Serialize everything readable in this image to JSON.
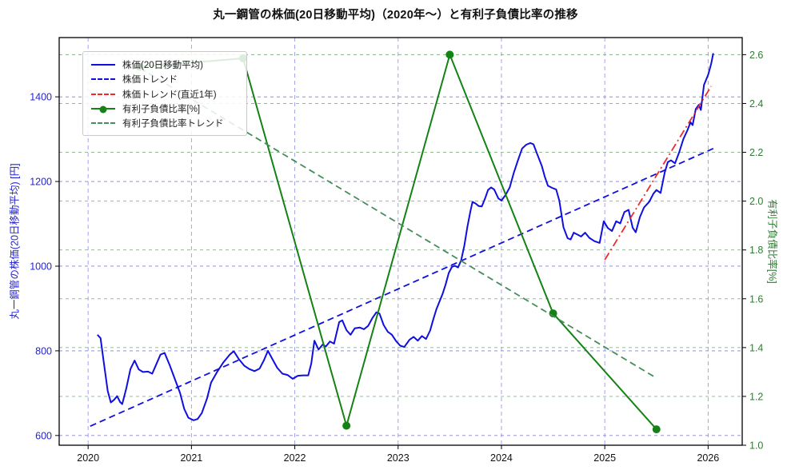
{
  "title": "丸一鋼管の株価(20日移動平均)（2020年～）と有利子負債比率の推移",
  "axes": {
    "x": {
      "ticks": [
        2020,
        2021,
        2022,
        2023,
        2024,
        2025,
        2026
      ],
      "lim": [
        2019.72,
        2026.33
      ]
    },
    "left": {
      "label": "丸一鋼管の株価(20日移動平均) [円]",
      "text_color": "#2424cc",
      "ticks": [
        600,
        800,
        1000,
        1200,
        1400
      ],
      "lim": [
        577,
        1540
      ],
      "format": "int"
    },
    "right": {
      "label": "有利子負債比率[%]",
      "text_color": "#2e7d32",
      "ticks": [
        1.0,
        1.2,
        1.4,
        1.6,
        1.8,
        2.0,
        2.2,
        2.4,
        2.6
      ],
      "lim": [
        1.0,
        2.67
      ],
      "format": "1f"
    }
  },
  "grid": {
    "vertical_color": "#9a9ae8",
    "left_color": "#8282d8",
    "right_color": "#86b386"
  },
  "legend": {
    "items": [
      {
        "label": "株価(20日移動平均)",
        "color": "#0f0fe0",
        "style": "solid",
        "marker": false
      },
      {
        "label": "株価トレンド",
        "color": "#0f0fe0",
        "style": "dashed",
        "marker": false
      },
      {
        "label": "株価トレンド(直近1年)",
        "color": "#ee2b2b",
        "style": "dashdot",
        "marker": false
      },
      {
        "label": "有利子負債比率[%]",
        "color": "#148214",
        "style": "solid",
        "marker": true
      },
      {
        "label": "有利子負債比率トレンド",
        "color": "#478c5c",
        "style": "dashed",
        "marker": false
      }
    ]
  },
  "chart_data": {
    "type": "line",
    "xlabel": "",
    "ylabel_left": "丸一鋼管の株価(20日移動平均) [円]",
    "ylabel_right": "有利子負債比率[%]",
    "series": [
      {
        "name": "株価(20日移動平均)",
        "axis": "left",
        "color": "#0f0fe0",
        "style": "solid",
        "width": 2,
        "points": [
          [
            2020.09,
            838
          ],
          [
            2020.12,
            830
          ],
          [
            2020.15,
            775
          ],
          [
            2020.19,
            705
          ],
          [
            2020.22,
            678
          ],
          [
            2020.25,
            684
          ],
          [
            2020.28,
            693
          ],
          [
            2020.31,
            679
          ],
          [
            2020.33,
            674
          ],
          [
            2020.37,
            712
          ],
          [
            2020.41,
            757
          ],
          [
            2020.45,
            777
          ],
          [
            2020.49,
            756
          ],
          [
            2020.53,
            750
          ],
          [
            2020.58,
            751
          ],
          [
            2020.62,
            746
          ],
          [
            2020.66,
            768
          ],
          [
            2020.7,
            791
          ],
          [
            2020.74,
            795
          ],
          [
            2020.79,
            766
          ],
          [
            2020.84,
            733
          ],
          [
            2020.89,
            700
          ],
          [
            2020.93,
            663
          ],
          [
            2020.97,
            642
          ],
          [
            2021.02,
            636
          ],
          [
            2021.06,
            639
          ],
          [
            2021.1,
            653
          ],
          [
            2021.15,
            687
          ],
          [
            2021.19,
            725
          ],
          [
            2021.25,
            751
          ],
          [
            2021.31,
            773
          ],
          [
            2021.37,
            791
          ],
          [
            2021.41,
            799
          ],
          [
            2021.46,
            780
          ],
          [
            2021.51,
            765
          ],
          [
            2021.56,
            757
          ],
          [
            2021.61,
            752
          ],
          [
            2021.66,
            758
          ],
          [
            2021.7,
            777
          ],
          [
            2021.74,
            800
          ],
          [
            2021.78,
            782
          ],
          [
            2021.83,
            760
          ],
          [
            2021.88,
            746
          ],
          [
            2021.93,
            743
          ],
          [
            2021.98,
            734
          ],
          [
            2022.03,
            741
          ],
          [
            2022.08,
            742
          ],
          [
            2022.13,
            742
          ],
          [
            2022.16,
            770
          ],
          [
            2022.19,
            824
          ],
          [
            2022.23,
            803
          ],
          [
            2022.27,
            815
          ],
          [
            2022.3,
            810
          ],
          [
            2022.34,
            822
          ],
          [
            2022.38,
            817
          ],
          [
            2022.43,
            868
          ],
          [
            2022.46,
            872
          ],
          [
            2022.5,
            849
          ],
          [
            2022.54,
            838
          ],
          [
            2022.58,
            853
          ],
          [
            2022.63,
            855
          ],
          [
            2022.67,
            851
          ],
          [
            2022.71,
            859
          ],
          [
            2022.75,
            877
          ],
          [
            2022.79,
            891
          ],
          [
            2022.82,
            888
          ],
          [
            2022.86,
            861
          ],
          [
            2022.9,
            845
          ],
          [
            2022.94,
            838
          ],
          [
            2022.98,
            823
          ],
          [
            2023.02,
            812
          ],
          [
            2023.06,
            809
          ],
          [
            2023.11,
            826
          ],
          [
            2023.15,
            833
          ],
          [
            2023.19,
            824
          ],
          [
            2023.23,
            835
          ],
          [
            2023.27,
            828
          ],
          [
            2023.31,
            848
          ],
          [
            2023.34,
            874
          ],
          [
            2023.37,
            898
          ],
          [
            2023.4,
            916
          ],
          [
            2023.43,
            934
          ],
          [
            2023.46,
            957
          ],
          [
            2023.49,
            984
          ],
          [
            2023.52,
            998
          ],
          [
            2023.55,
            1001
          ],
          [
            2023.58,
            997
          ],
          [
            2023.61,
            1014
          ],
          [
            2023.64,
            1048
          ],
          [
            2023.67,
            1092
          ],
          [
            2023.7,
            1130
          ],
          [
            2023.72,
            1152
          ],
          [
            2023.75,
            1148
          ],
          [
            2023.78,
            1142
          ],
          [
            2023.81,
            1141
          ],
          [
            2023.84,
            1159
          ],
          [
            2023.87,
            1180
          ],
          [
            2023.9,
            1186
          ],
          [
            2023.93,
            1181
          ],
          [
            2023.97,
            1160
          ],
          [
            2024.0,
            1155
          ],
          [
            2024.04,
            1168
          ],
          [
            2024.08,
            1186
          ],
          [
            2024.12,
            1221
          ],
          [
            2024.16,
            1250
          ],
          [
            2024.2,
            1278
          ],
          [
            2024.24,
            1287
          ],
          [
            2024.28,
            1291
          ],
          [
            2024.31,
            1288
          ],
          [
            2024.35,
            1262
          ],
          [
            2024.39,
            1237
          ],
          [
            2024.42,
            1211
          ],
          [
            2024.45,
            1190
          ],
          [
            2024.49,
            1185
          ],
          [
            2024.53,
            1181
          ],
          [
            2024.56,
            1155
          ],
          [
            2024.6,
            1092
          ],
          [
            2024.64,
            1066
          ],
          [
            2024.67,
            1063
          ],
          [
            2024.7,
            1079
          ],
          [
            2024.74,
            1074
          ],
          [
            2024.77,
            1070
          ],
          [
            2024.81,
            1079
          ],
          [
            2024.85,
            1067
          ],
          [
            2024.9,
            1059
          ],
          [
            2024.95,
            1055
          ],
          [
            2024.99,
            1106
          ],
          [
            2025.03,
            1090
          ],
          [
            2025.07,
            1083
          ],
          [
            2025.11,
            1106
          ],
          [
            2025.15,
            1101
          ],
          [
            2025.19,
            1128
          ],
          [
            2025.23,
            1133
          ],
          [
            2025.27,
            1091
          ],
          [
            2025.3,
            1080
          ],
          [
            2025.34,
            1116
          ],
          [
            2025.38,
            1139
          ],
          [
            2025.43,
            1152
          ],
          [
            2025.47,
            1171
          ],
          [
            2025.5,
            1180
          ],
          [
            2025.54,
            1173
          ],
          [
            2025.58,
            1221
          ],
          [
            2025.61,
            1246
          ],
          [
            2025.64,
            1250
          ],
          [
            2025.68,
            1243
          ],
          [
            2025.72,
            1269
          ],
          [
            2025.76,
            1300
          ],
          [
            2025.8,
            1321
          ],
          [
            2025.83,
            1340
          ],
          [
            2025.85,
            1333
          ],
          [
            2025.88,
            1371
          ],
          [
            2025.91,
            1381
          ],
          [
            2025.93,
            1369
          ],
          [
            2025.96,
            1428
          ],
          [
            2026.0,
            1452
          ],
          [
            2026.03,
            1478
          ],
          [
            2026.05,
            1503
          ]
        ]
      },
      {
        "name": "株価トレンド",
        "axis": "left",
        "color": "#0f0fe0",
        "style": "dashed",
        "width": 1.8,
        "points": [
          [
            2020.02,
            622
          ],
          [
            2026.05,
            1278
          ]
        ]
      },
      {
        "name": "株価トレンド(直近1年)",
        "axis": "left",
        "color": "#ee2b2b",
        "style": "dashdot",
        "width": 1.8,
        "points": [
          [
            2025.0,
            1015
          ],
          [
            2026.03,
            1425
          ]
        ]
      },
      {
        "name": "有利子負債比率[%]",
        "axis": "right",
        "color": "#148214",
        "style": "solid",
        "width": 2,
        "marker": "circle",
        "marker_size": 5,
        "points": [
          [
            2020.5,
            2.55
          ],
          [
            2021.5,
            2.585
          ],
          [
            2022.5,
            1.08
          ],
          [
            2023.5,
            2.6
          ],
          [
            2024.5,
            1.54
          ],
          [
            2025.5,
            1.065
          ]
        ]
      },
      {
        "name": "有利子負債比率トレンド",
        "axis": "right",
        "color": "#478c5c",
        "style": "dashed",
        "width": 1.8,
        "points": [
          [
            2020.5,
            2.545
          ],
          [
            2025.5,
            1.275
          ]
        ]
      }
    ]
  }
}
